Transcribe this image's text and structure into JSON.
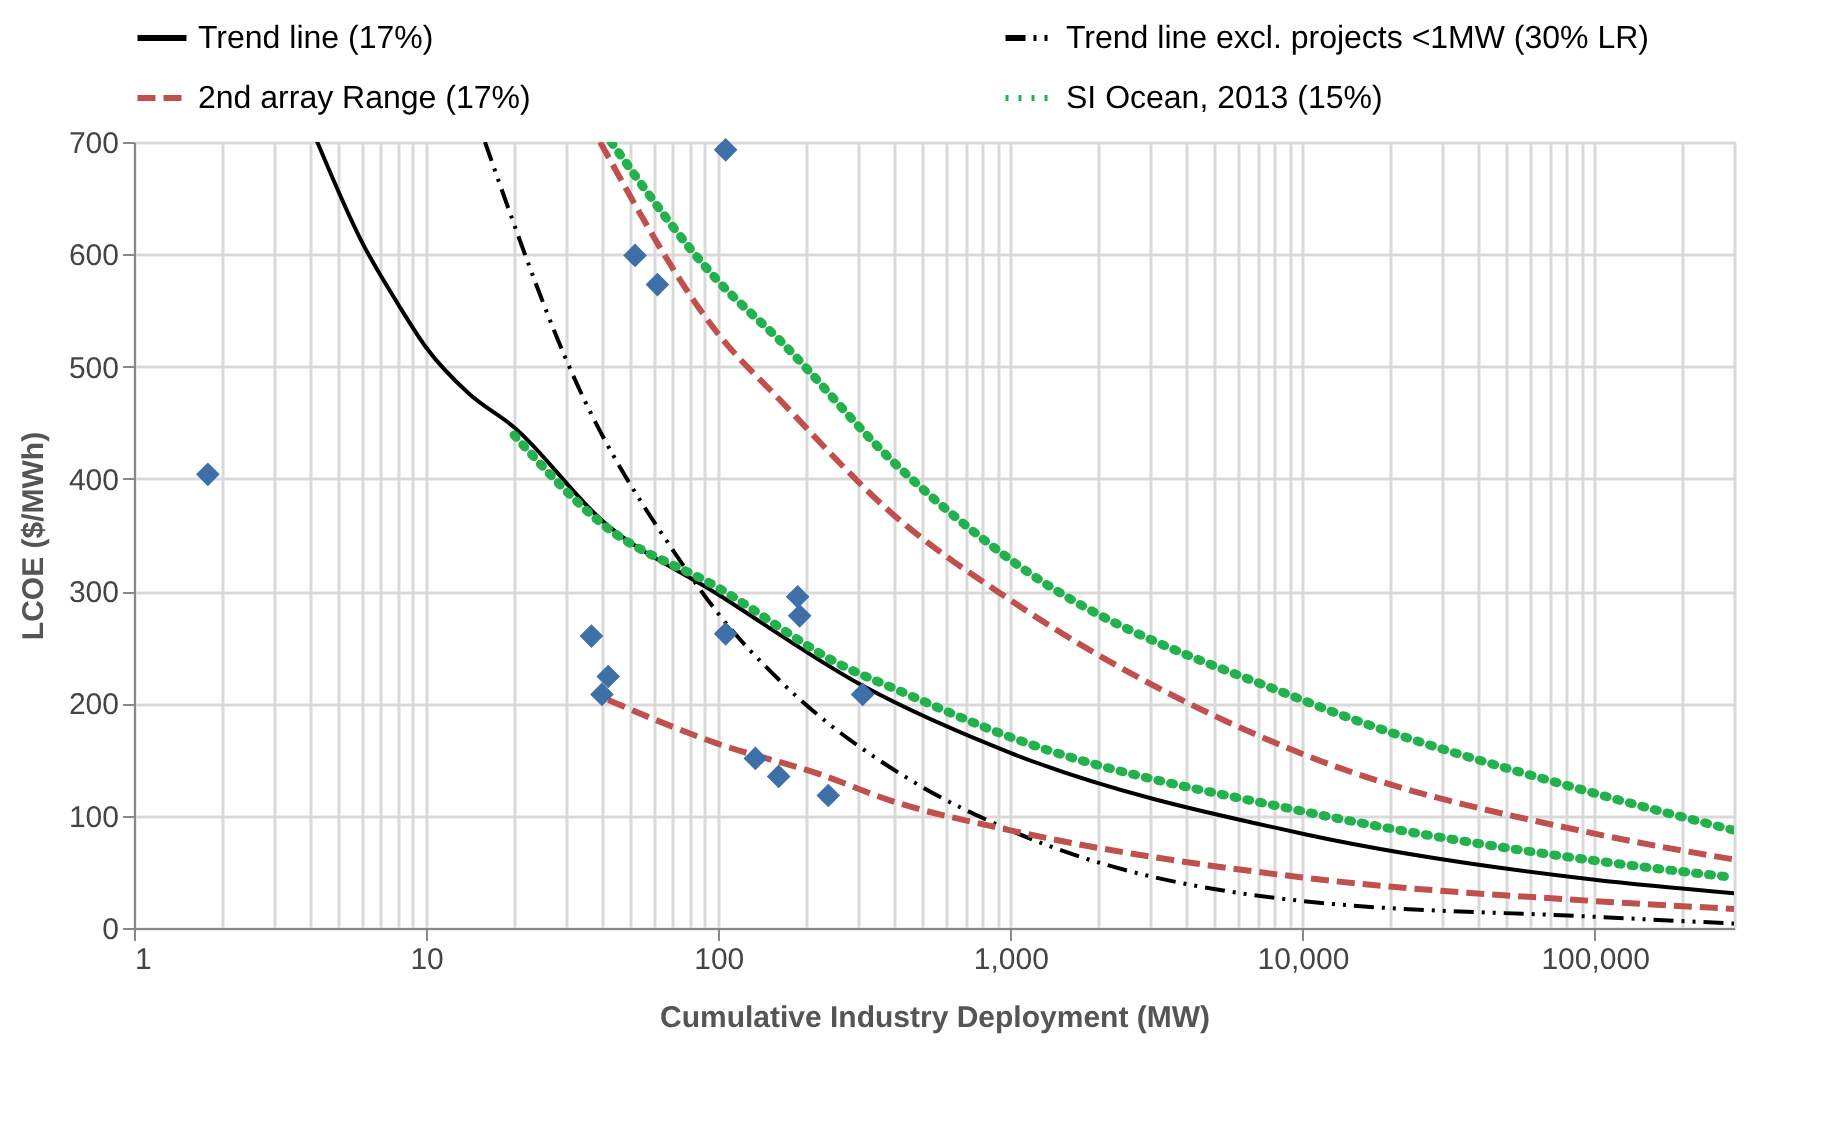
{
  "chart_data": {
    "type": "line",
    "xlabel": "Cumulative Industry Deployment (MW)",
    "ylabel": "LCOE ($/MWh)",
    "log": "x",
    "grid": true,
    "legend": "top",
    "xlim": [
      1,
      300000
    ],
    "ylim": [
      0,
      700
    ],
    "yticks": [
      0,
      100,
      200,
      300,
      400,
      500,
      600,
      700
    ],
    "xticks": [
      1,
      {
        "value": 2,
        "label": null
      },
      {
        "value": 3,
        "label": null
      },
      {
        "value": 4,
        "label": null
      },
      {
        "value": 5,
        "label": null
      },
      {
        "value": 6,
        "label": null
      },
      {
        "value": 7,
        "label": null
      },
      {
        "value": 8,
        "label": null
      },
      {
        "value": 9,
        "label": null
      },
      10,
      {
        "value": 20,
        "label": null
      },
      {
        "value": 30,
        "label": null
      },
      {
        "value": 40,
        "label": null
      },
      {
        "value": 50,
        "label": null
      },
      {
        "value": 60,
        "label": null
      },
      {
        "value": 70,
        "label": null
      },
      {
        "value": 80,
        "label": null
      },
      {
        "value": 90,
        "label": null
      },
      100,
      {
        "value": 200,
        "label": null
      },
      {
        "value": 300,
        "label": null
      },
      {
        "value": 400,
        "label": null
      },
      {
        "value": 500,
        "label": null
      },
      {
        "value": 600,
        "label": null
      },
      {
        "value": 700,
        "label": null
      },
      {
        "value": 800,
        "label": null
      },
      {
        "value": 900,
        "label": null
      },
      {
        "value": 1000,
        "label": "1,000"
      },
      {
        "value": 2000,
        "label": null
      },
      {
        "value": 3000,
        "label": null
      },
      {
        "value": 4000,
        "label": null
      },
      {
        "value": 5000,
        "label": null
      },
      {
        "value": 6000,
        "label": null
      },
      {
        "value": 7000,
        "label": null
      },
      {
        "value": 8000,
        "label": null
      },
      {
        "value": 9000,
        "label": null
      },
      {
        "value": 10000,
        "label": "10,000"
      },
      {
        "value": 20000,
        "label": null
      },
      {
        "value": 30000,
        "label": null
      },
      {
        "value": 40000,
        "label": null
      },
      {
        "value": 50000,
        "label": null
      },
      {
        "value": 60000,
        "label": null
      },
      {
        "value": 70000,
        "label": null
      },
      {
        "value": 80000,
        "label": null
      },
      {
        "value": 90000,
        "label": null
      },
      {
        "value": 100000,
        "label": "100,000"
      },
      {
        "value": 200000,
        "label": null
      },
      {
        "value": 300000,
        "label": null
      }
    ],
    "series": [
      {
        "name": "Trend line (17%)",
        "color": "#000000",
        "line_style": "solid",
        "x": [
          4.24,
          6,
          8,
          10,
          14,
          20,
          40,
          100,
          316,
          1000,
          10000,
          100000,
          300000
        ],
        "values": [
          700,
          612,
          556,
          517,
          476,
          446,
          363,
          297,
          215,
          156,
          84,
          43,
          31
        ]
      },
      {
        "name": "Trend line excl. projects <1MW (30% LR)",
        "color": "#000000",
        "line_style": "dashdot",
        "x": [
          15.9,
          32.5,
          72.7,
          100,
          163,
          460,
          1000,
          10000,
          100000,
          300000
        ],
        "values": [
          700,
          487,
          330,
          280,
          220,
          131,
          87,
          24,
          10,
          4
        ]
      },
      {
        "name": "2nd array Range (17%)",
        "color": "#c0504d",
        "line_style": "dashed",
        "x": [
          39.4,
          100,
          163,
          394,
          1000,
          10000,
          100000,
          300000
        ],
        "values": [
          700,
          529,
          470,
          369,
          292,
          155,
          84,
          61
        ]
      },
      {
        "color": "#c0504d",
        "line_style": "dashed",
        "x": [
          42,
          100,
          222,
          394,
          1000,
          10000,
          100000,
          300000
        ],
        "values": [
          203,
          164,
          137,
          113,
          87,
          45,
          24,
          17
        ]
      },
      {
        "name": "SI Ocean, 2013 (15%)",
        "color": "#22b14c",
        "line_style": "dotted",
        "x": [
          43,
          100,
          163,
          394,
          1000,
          10000,
          100000,
          300000
        ],
        "values": [
          700,
          576,
          523,
          416,
          328,
          203,
          120,
          87
        ]
      },
      {
        "color": "#22b14c",
        "line_style": "dotted",
        "x": [
          20,
          40,
          100,
          274,
          394,
          1000,
          10000,
          100000,
          300000
        ],
        "values": [
          439,
          360,
          303,
          232,
          214,
          170,
          104,
          60,
          45
        ]
      },
      {
        "type": "scatter",
        "marker": "diamond",
        "color": "#3f6fa8",
        "x": [
          1.79,
          51.9,
          61.9,
          106,
          36.8,
          42,
          40,
          106,
          187,
          190,
          312,
          134,
          161,
          238
        ],
        "values": [
          404,
          599,
          573,
          693,
          260,
          224,
          208,
          262,
          295,
          278,
          208,
          151,
          135,
          118
        ]
      }
    ]
  }
}
